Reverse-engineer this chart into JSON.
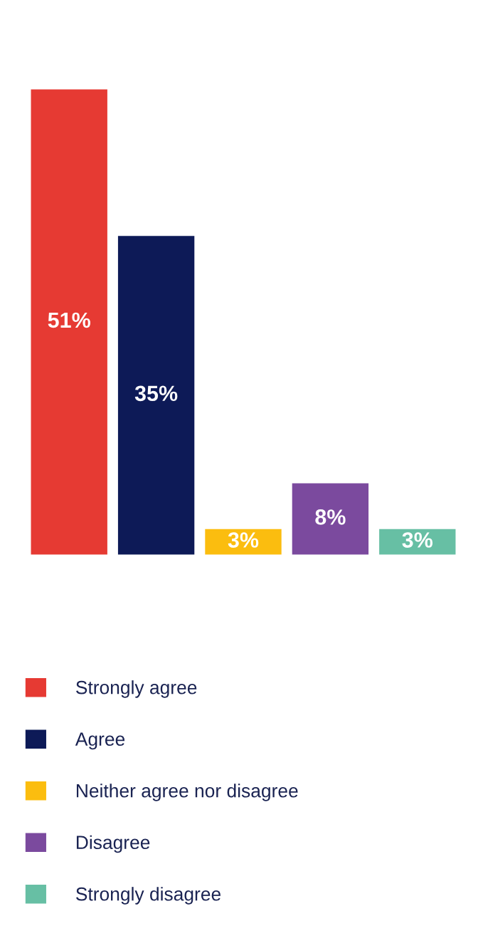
{
  "chart_data": {
    "type": "bar",
    "categories": [
      null
    ],
    "series": [
      {
        "name": "Strongly agree",
        "color": "#e63a33",
        "values": [
          51
        ],
        "value_labels": [
          "51%"
        ]
      },
      {
        "name": "Agree",
        "color": "#0d1a57",
        "values": [
          35
        ],
        "value_labels": [
          "35%"
        ]
      },
      {
        "name": "Neither agree nor disagree",
        "color": "#fbbd0f",
        "values": [
          3
        ],
        "value_labels": [
          "3%"
        ]
      },
      {
        "name": "Disagree",
        "color": "#7b4a9e",
        "values": [
          8
        ],
        "value_labels": [
          "8%"
        ]
      },
      {
        "name": "Strongly disagree",
        "color": "#67bfa4",
        "values": [
          3
        ],
        "value_labels": [
          "3%"
        ]
      }
    ],
    "legend": "bottom",
    "grid": false
  }
}
